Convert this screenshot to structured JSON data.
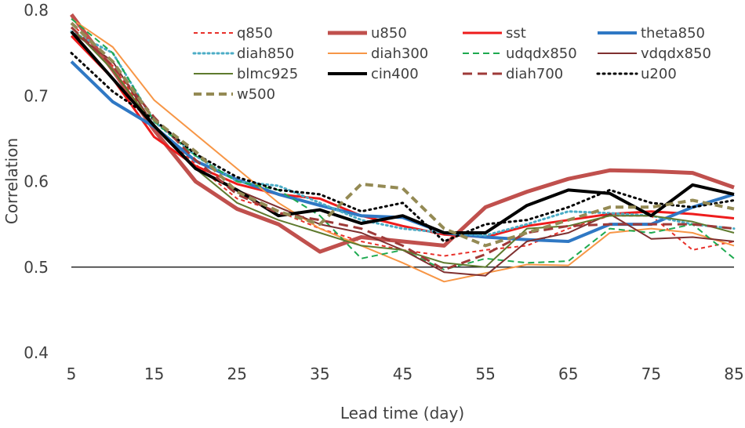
{
  "chart_data": {
    "type": "line",
    "title": "",
    "xlabel": "Lead time (day)",
    "ylabel": "Correlation",
    "x": [
      5,
      10,
      15,
      20,
      25,
      30,
      35,
      40,
      45,
      50,
      55,
      60,
      65,
      70,
      75,
      80,
      85
    ],
    "xlim": [
      5,
      85
    ],
    "ylim": [
      0.4,
      0.8
    ],
    "xticks": [
      5,
      15,
      25,
      35,
      45,
      55,
      65,
      75,
      85
    ],
    "yticks": [
      0.4,
      0.5,
      0.6,
      0.7,
      0.8
    ],
    "ytick_labels": [
      "0.4",
      "0.5",
      "0.6",
      "0.7",
      "0.8"
    ],
    "reference_line": 0.5,
    "legend_position": "top",
    "series": [
      {
        "name": "q850",
        "color": "#e8302a",
        "width": 2,
        "dash": "5,4",
        "values": [
          0.785,
          0.735,
          0.665,
          0.62,
          0.58,
          0.565,
          0.545,
          0.53,
          0.52,
          0.513,
          0.52,
          0.525,
          0.545,
          0.56,
          0.56,
          0.52,
          0.53
        ]
      },
      {
        "name": "u850",
        "color": "#c0504d",
        "width": 5,
        "dash": "",
        "values": [
          0.795,
          0.73,
          0.66,
          0.6,
          0.568,
          0.55,
          0.518,
          0.535,
          0.53,
          0.525,
          0.57,
          0.588,
          0.603,
          0.613,
          0.612,
          0.61,
          0.593
        ]
      },
      {
        "name": "sst",
        "color": "#ee1c1c",
        "width": 3,
        "dash": "",
        "values": [
          0.77,
          0.72,
          0.652,
          0.618,
          0.597,
          0.585,
          0.58,
          0.56,
          0.548,
          0.538,
          0.535,
          0.548,
          0.555,
          0.562,
          0.565,
          0.562,
          0.557
        ]
      },
      {
        "name": "theta850",
        "color": "#2f78c4",
        "width": 4,
        "dash": "",
        "values": [
          0.74,
          0.693,
          0.664,
          0.624,
          0.602,
          0.585,
          0.572,
          0.56,
          0.558,
          0.54,
          0.535,
          0.532,
          0.53,
          0.55,
          0.55,
          0.57,
          0.585
        ]
      },
      {
        "name": "diah850",
        "color": "#4bacc6",
        "width": 3,
        "dash": "2,4",
        "values": [
          0.775,
          0.75,
          0.67,
          0.63,
          0.6,
          0.595,
          0.575,
          0.555,
          0.545,
          0.54,
          0.537,
          0.55,
          0.565,
          0.563,
          0.56,
          0.55,
          0.545
        ]
      },
      {
        "name": "diah300",
        "color": "#f79646",
        "width": 2,
        "dash": "",
        "values": [
          0.79,
          0.757,
          0.695,
          0.655,
          0.615,
          0.575,
          0.545,
          0.525,
          0.505,
          0.483,
          0.493,
          0.503,
          0.502,
          0.54,
          0.545,
          0.54,
          0.525
        ]
      },
      {
        "name": "udqdx850",
        "color": "#1eaa50",
        "width": 2,
        "dash": "8,5",
        "values": [
          0.79,
          0.75,
          0.67,
          0.63,
          0.6,
          0.59,
          0.56,
          0.51,
          0.52,
          0.497,
          0.51,
          0.505,
          0.507,
          0.545,
          0.54,
          0.55,
          0.51
        ]
      },
      {
        "name": "vdqdx850",
        "color": "#7f3030",
        "width": 2,
        "dash": "",
        "values": [
          0.775,
          0.74,
          0.665,
          0.615,
          0.59,
          0.57,
          0.55,
          0.54,
          0.52,
          0.494,
          0.49,
          0.53,
          0.54,
          0.562,
          0.533,
          0.535,
          0.53
        ]
      },
      {
        "name": "blmc925",
        "color": "#5e7a2e",
        "width": 2,
        "dash": "",
        "values": [
          0.78,
          0.73,
          0.665,
          0.615,
          0.575,
          0.555,
          0.54,
          0.525,
          0.52,
          0.505,
          0.5,
          0.545,
          0.548,
          0.56,
          0.56,
          0.553,
          0.54
        ]
      },
      {
        "name": "cin400",
        "color": "#000000",
        "width": 4,
        "dash": "",
        "values": [
          0.775,
          0.72,
          0.665,
          0.615,
          0.59,
          0.56,
          0.567,
          0.551,
          0.56,
          0.54,
          0.54,
          0.572,
          0.59,
          0.586,
          0.56,
          0.596,
          0.585
        ]
      },
      {
        "name": "diah700",
        "color": "#9e3a38",
        "width": 3,
        "dash": "12,7",
        "values": [
          0.78,
          0.735,
          0.675,
          0.625,
          0.585,
          0.563,
          0.555,
          0.545,
          0.525,
          0.497,
          0.515,
          0.54,
          0.548,
          0.55,
          0.55,
          0.55,
          0.545
        ]
      },
      {
        "name": "u200",
        "color": "#000000",
        "width": 3,
        "dash": "2,5",
        "values": [
          0.75,
          0.705,
          0.672,
          0.632,
          0.605,
          0.59,
          0.585,
          0.565,
          0.575,
          0.53,
          0.55,
          0.555,
          0.57,
          0.59,
          0.575,
          0.57,
          0.578
        ]
      },
      {
        "name": "w500",
        "color": "#948a54",
        "width": 4,
        "dash": "10,6",
        "values": [
          0.785,
          0.74,
          0.672,
          0.635,
          0.588,
          0.565,
          0.55,
          0.597,
          0.592,
          0.545,
          0.525,
          0.54,
          0.555,
          0.57,
          0.57,
          0.578,
          0.568
        ]
      }
    ]
  }
}
